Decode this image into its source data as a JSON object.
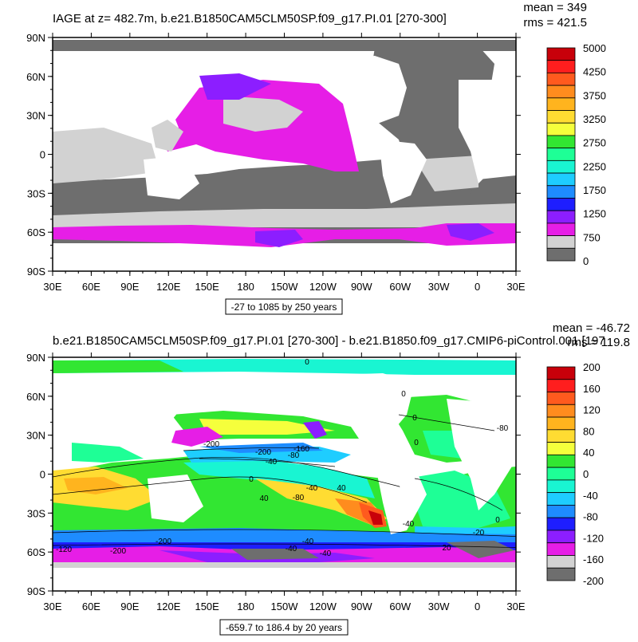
{
  "panels": [
    {
      "title": "IAGE at z= 482.7m, b.e21.B1850CAM5CLM50SP.f09_g17.PI.01 [270-300]",
      "stats": {
        "mean": "mean = 349",
        "rms": "rms = 421.5"
      },
      "range_note": "-27 to 1085 by 250 years",
      "lat_labels": [
        "90N",
        "60N",
        "30N",
        "0",
        "30S",
        "60S",
        "90S"
      ],
      "lon_labels": [
        "30E",
        "60E",
        "90E",
        "120E",
        "150E",
        "180",
        "150W",
        "120W",
        "90W",
        "60W",
        "30W",
        "0",
        "30E"
      ],
      "colorbar": {
        "labels": [
          "5000",
          "4250",
          "3750",
          "3250",
          "2750",
          "2250",
          "1750",
          "1250",
          "750",
          "0"
        ],
        "colors": [
          "#c8000a",
          "#ff1e1e",
          "#ff5a1e",
          "#ff8c1e",
          "#ffb41e",
          "#ffdc32",
          "#f5ff3c",
          "#32e632",
          "#1eff96",
          "#19f5d2",
          "#1ecdff",
          "#1e8cff",
          "#1e1eff",
          "#8c1eff",
          "#e61ee6",
          "#d2d2d2",
          "#6e6e6e"
        ]
      },
      "contour_labels": []
    },
    {
      "title": "b.e21.B1850CAM5CLM50SP.f09_g17.PI.01 [270-300] - b.e21.B1850.f09_g17.CMIP6-piControl.001 [197",
      "stats": {
        "mean": "mean = -46.72",
        "rms": "rms = 119.8"
      },
      "range_note": "-659.7 to 186.4 by 20 years",
      "lat_labels": [
        "90N",
        "60N",
        "30N",
        "0",
        "30S",
        "60S",
        "90S"
      ],
      "lon_labels": [
        "30E",
        "60E",
        "90E",
        "120E",
        "150E",
        "180",
        "150W",
        "120W",
        "90W",
        "60W",
        "30W",
        "0",
        "30E"
      ],
      "colorbar": {
        "labels": [
          "200",
          "160",
          "120",
          "80",
          "40",
          "0",
          "-40",
          "-80",
          "-120",
          "-160",
          "-200"
        ],
        "colors": [
          "#c8000a",
          "#ff1e1e",
          "#ff5a1e",
          "#ff8c1e",
          "#ffb41e",
          "#ffdc32",
          "#f5ff3c",
          "#32e632",
          "#1eff96",
          "#19f5d2",
          "#1ecdff",
          "#1e8cff",
          "#1e1eff",
          "#8c1eff",
          "#e61ee6",
          "#d2d2d2",
          "#6e6e6e"
        ]
      },
      "contour_labels": [
        "0",
        "-200",
        "-200",
        "-160",
        "-80",
        "-40",
        "0",
        "-40",
        "40",
        "-80",
        "40",
        "0",
        "0",
        "0",
        "-40",
        "0",
        "-20",
        "20",
        "-120",
        "-200",
        "-200",
        "-40",
        "-40",
        "-40",
        "-80"
      ]
    }
  ]
}
